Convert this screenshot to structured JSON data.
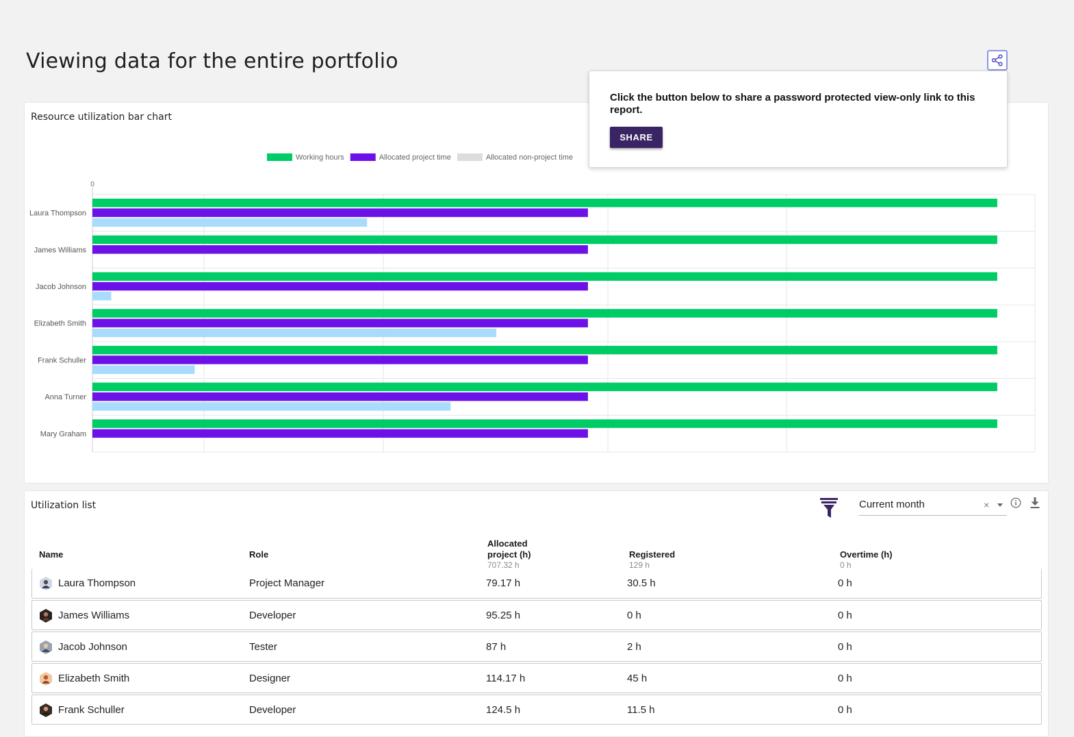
{
  "page": {
    "title": "Viewing data for the entire portfolio"
  },
  "share": {
    "icon": "share-icon",
    "popover_text": "Click the button below to share a password protected view-only link to this report.",
    "button_label": "SHARE",
    "button_color": "#3a2464"
  },
  "chart_card": {
    "title": "Resource utilization bar chart"
  },
  "chart_data": {
    "type": "bar",
    "orientation": "horizontal",
    "categories": [
      "Laura Thompson",
      "James Williams",
      "Jacob Johnson",
      "Elizabeth Smith",
      "Frank Schuller",
      "Anna Turner",
      "Mary Graham"
    ],
    "series": [
      {
        "name": "Working hours",
        "color": "#00cc66",
        "values": [
          168,
          168,
          168,
          168,
          168,
          168,
          168
        ]
      },
      {
        "name": "Allocated project time",
        "color": "#6c12e8",
        "values": [
          92,
          92,
          92,
          92,
          92,
          92,
          92
        ]
      },
      {
        "name": "Allocated non-project time",
        "color": "#a9dcfc",
        "legend_color": "#dddddd",
        "values": [
          51,
          0,
          3.5,
          75,
          19,
          66.5,
          0
        ]
      }
    ],
    "x_tick_labels": [
      "0"
    ],
    "xlim": [
      0,
      175
    ],
    "legend": "top-center",
    "grid": true
  },
  "list_card": {
    "title": "Utilization list",
    "filter_icon": "funnel-icon",
    "period": "Current month",
    "clear_symbol": "×",
    "info_icon": "info-icon",
    "download_icon": "download-icon",
    "columns": [
      {
        "label": "Name",
        "sub": ""
      },
      {
        "label": "Role",
        "sub": ""
      },
      {
        "label": "Allocated project (h)",
        "sub": "707.32 h"
      },
      {
        "label": "Registered",
        "sub": "129 h"
      },
      {
        "label": "Overtime (h)",
        "sub": "0 h"
      }
    ],
    "rows": [
      {
        "name": "Laura Thompson",
        "role": "Project Manager",
        "allocated": "79.17 h",
        "registered": "30.5 h",
        "overtime": "0 h"
      },
      {
        "name": "James Williams",
        "role": "Developer",
        "allocated": "95.25 h",
        "registered": "0 h",
        "overtime": "0 h"
      },
      {
        "name": "Jacob Johnson",
        "role": "Tester",
        "allocated": "87 h",
        "registered": "2 h",
        "overtime": "0 h"
      },
      {
        "name": "Elizabeth Smith",
        "role": "Designer",
        "allocated": "114.17 h",
        "registered": "45 h",
        "overtime": "0 h"
      },
      {
        "name": "Frank Schuller",
        "role": "Developer",
        "allocated": "124.5 h",
        "registered": "11.5 h",
        "overtime": "0 h"
      }
    ]
  }
}
